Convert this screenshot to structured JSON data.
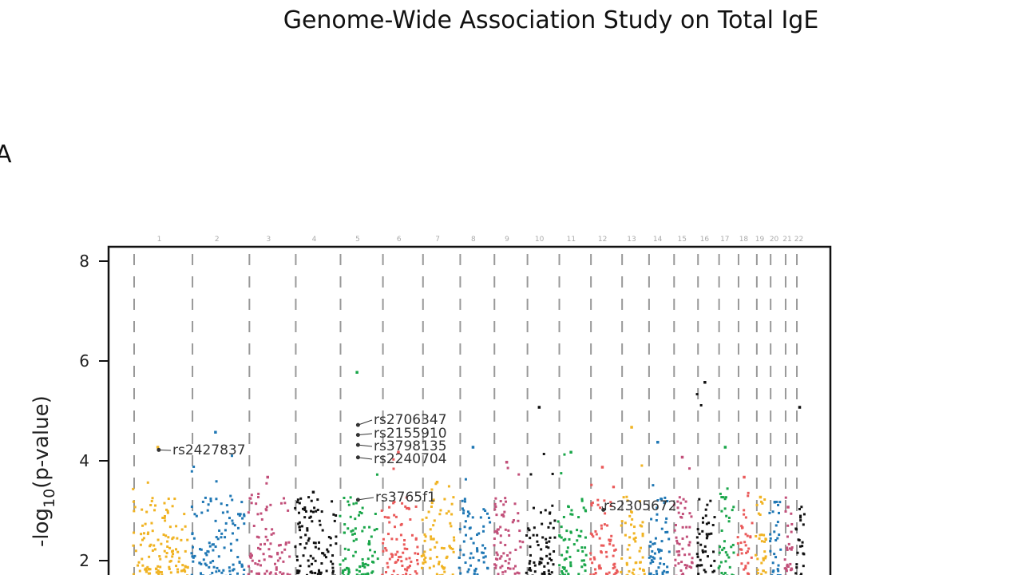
{
  "chart_data": {
    "type": "scatter",
    "subtype": "manhattan",
    "title": "Genome-Wide Association Study on Total IgE",
    "panel_label": "A",
    "xlabel": "",
    "ylabel": "-log10(p-value)",
    "ylabel_main": "-log",
    "ylabel_sub": "10",
    "ylabel_tail": "(p-value)",
    "ylim": [
      1.6,
      8.3
    ],
    "yticks": [
      "8",
      "6",
      "4",
      "2"
    ],
    "grid": "vertical-dashed",
    "chromosomes": [
      "1",
      "2",
      "3",
      "4",
      "5",
      "6",
      "7",
      "8",
      "9",
      "10",
      "11",
      "12",
      "13",
      "14",
      "15",
      "16",
      "17",
      "18",
      "19",
      "20",
      "21",
      "22"
    ],
    "chromosome_colors": [
      "#f0b323",
      "#1f77b4",
      "#c2507a",
      "#111111",
      "#1aa64a",
      "#ea5a5a",
      "#f0b323",
      "#1f77b4",
      "#c2507a",
      "#111111",
      "#1aa64a",
      "#ea5a5a",
      "#f0b323",
      "#1f77b4",
      "#c2507a",
      "#111111",
      "#1aa64a",
      "#ea5a5a",
      "#f0b323",
      "#1f77b4",
      "#c2507a",
      "#111111"
    ],
    "chromosome_peaks": [
      4.3,
      4.6,
      3.7,
      3.4,
      5.8,
      4.2,
      3.6,
      4.3,
      4.0,
      5.1,
      4.2,
      3.9,
      4.7,
      4.4,
      4.1,
      5.6,
      4.3,
      3.7,
      3.3,
      3.2,
      3.1,
      5.1
    ],
    "annotated_snps": [
      {
        "label": "rs2427837",
        "chromosome": "1",
        "value": 4.25
      },
      {
        "label": "rs2706347",
        "chromosome": "5",
        "value": 4.75
      },
      {
        "label": "rs2155910",
        "chromosome": "5",
        "value": 4.55
      },
      {
        "label": "rs3798135",
        "chromosome": "5",
        "value": 4.35
      },
      {
        "label": "rs2240704",
        "chromosome": "5",
        "value": 4.1
      },
      {
        "label": "rs3765f1",
        "chromosome": "5",
        "value": 3.25
      },
      {
        "label": "rs2305672",
        "chromosome": "12",
        "value": 3.05
      }
    ]
  }
}
